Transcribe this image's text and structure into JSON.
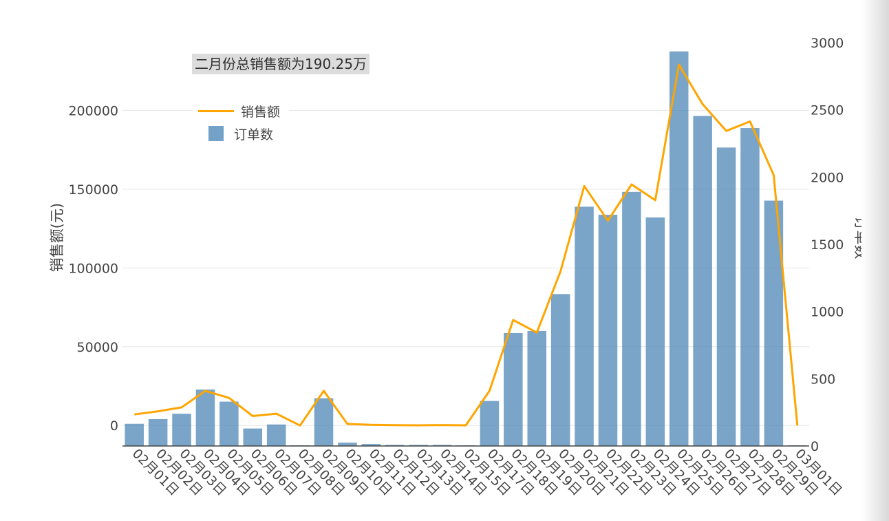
{
  "annotation": "二月份总销售额为190.25万",
  "chart_data": {
    "type": "bar+line",
    "categories": [
      "02月01日",
      "02月02日",
      "02月03日",
      "02月04日",
      "02月05日",
      "02月06日",
      "02月07日",
      "02月08日",
      "02月09日",
      "02月10日",
      "02月11日",
      "02月12日",
      "02月13日",
      "02月14日",
      "02月15日",
      "02月17日",
      "02月18日",
      "02月19日",
      "02月20日",
      "02月21日",
      "02月22日",
      "02月23日",
      "02月24日",
      "02月25日",
      "02月26日",
      "02月27日",
      "02月28日",
      "02月29日",
      "03月01日"
    ],
    "series": [
      {
        "name": "销售额",
        "type": "line",
        "axis": "left",
        "color": "#FFA500",
        "values": [
          7000,
          9000,
          11500,
          22000,
          17500,
          6000,
          7500,
          0,
          22000,
          1000,
          400,
          200,
          100,
          300,
          100,
          22000,
          67000,
          59000,
          98000,
          152000,
          130000,
          153000,
          143000,
          229000,
          204000,
          187000,
          193000,
          159000,
          0
        ]
      },
      {
        "name": "订单数",
        "type": "bar",
        "axis": "right",
        "color": "#4682B4",
        "values": [
          165,
          200,
          240,
          420,
          330,
          130,
          160,
          5,
          355,
          25,
          15,
          8,
          8,
          8,
          5,
          335,
          840,
          855,
          1130,
          1780,
          1720,
          1890,
          1700,
          2935,
          2455,
          2220,
          2365,
          1825,
          5
        ]
      }
    ],
    "y_left": {
      "label": "销售额(元)",
      "ticks": [
        0,
        50000,
        100000,
        150000,
        200000
      ],
      "range": [
        -13000,
        243000
      ]
    },
    "y_right": {
      "label": "订单数",
      "ticks": [
        0,
        500,
        1000,
        1500,
        2000,
        2500,
        3000
      ],
      "range": [
        0,
        3000
      ]
    },
    "grid": true,
    "legend_position": "top-left"
  }
}
